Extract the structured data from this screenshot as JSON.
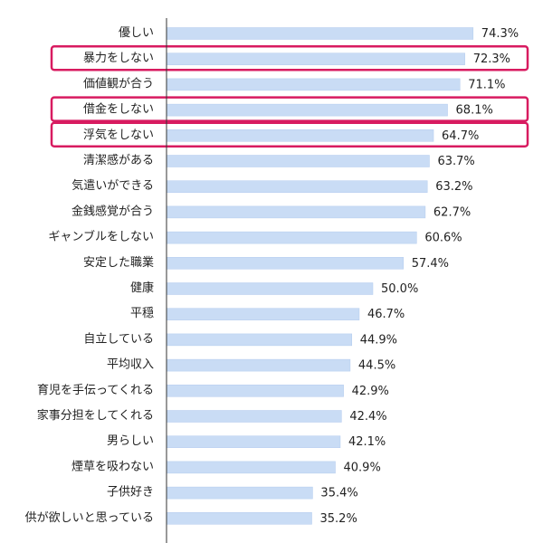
{
  "chart_data": {
    "type": "bar",
    "orientation": "horizontal",
    "categories": [
      "優しい",
      "暴力をしない",
      "価値観が合う",
      "借金をしない",
      "浮気をしない",
      "清潔感がある",
      "気遣いができる",
      "金銭感覚が合う",
      "ギャンブルをしない",
      "安定した職業",
      "健康",
      "平穏",
      "自立している",
      "平均収入",
      "育児を手伝ってくれる",
      "家事分担をしてくれる",
      "男らしい",
      "煙草を吸わない",
      "子供好き",
      "供が欲しいと思っている"
    ],
    "values": [
      74.3,
      72.3,
      71.1,
      68.1,
      64.7,
      63.7,
      63.2,
      62.7,
      60.6,
      57.4,
      50.0,
      46.7,
      44.9,
      44.5,
      42.9,
      42.4,
      42.1,
      40.9,
      35.4,
      35.2
    ],
    "value_labels": [
      "74.3%",
      "72.3%",
      "71.1%",
      "68.1%",
      "64.7%",
      "63.7%",
      "63.2%",
      "62.7%",
      "60.6%",
      "57.4%",
      "50.0%",
      "46.7%",
      "44.9%",
      "44.5%",
      "42.9%",
      "42.4%",
      "42.1%",
      "40.9%",
      "35.4%",
      "35.2%"
    ],
    "highlighted": [
      "暴力をしない",
      "借金をしない",
      "浮気をしない"
    ],
    "xlim": [
      0,
      100
    ],
    "grid": false,
    "colors": {
      "bar": "#c9dcf5",
      "bar_edge": "#b3cbee",
      "highlight_box": "#d81b60",
      "axis": "#333333"
    }
  }
}
